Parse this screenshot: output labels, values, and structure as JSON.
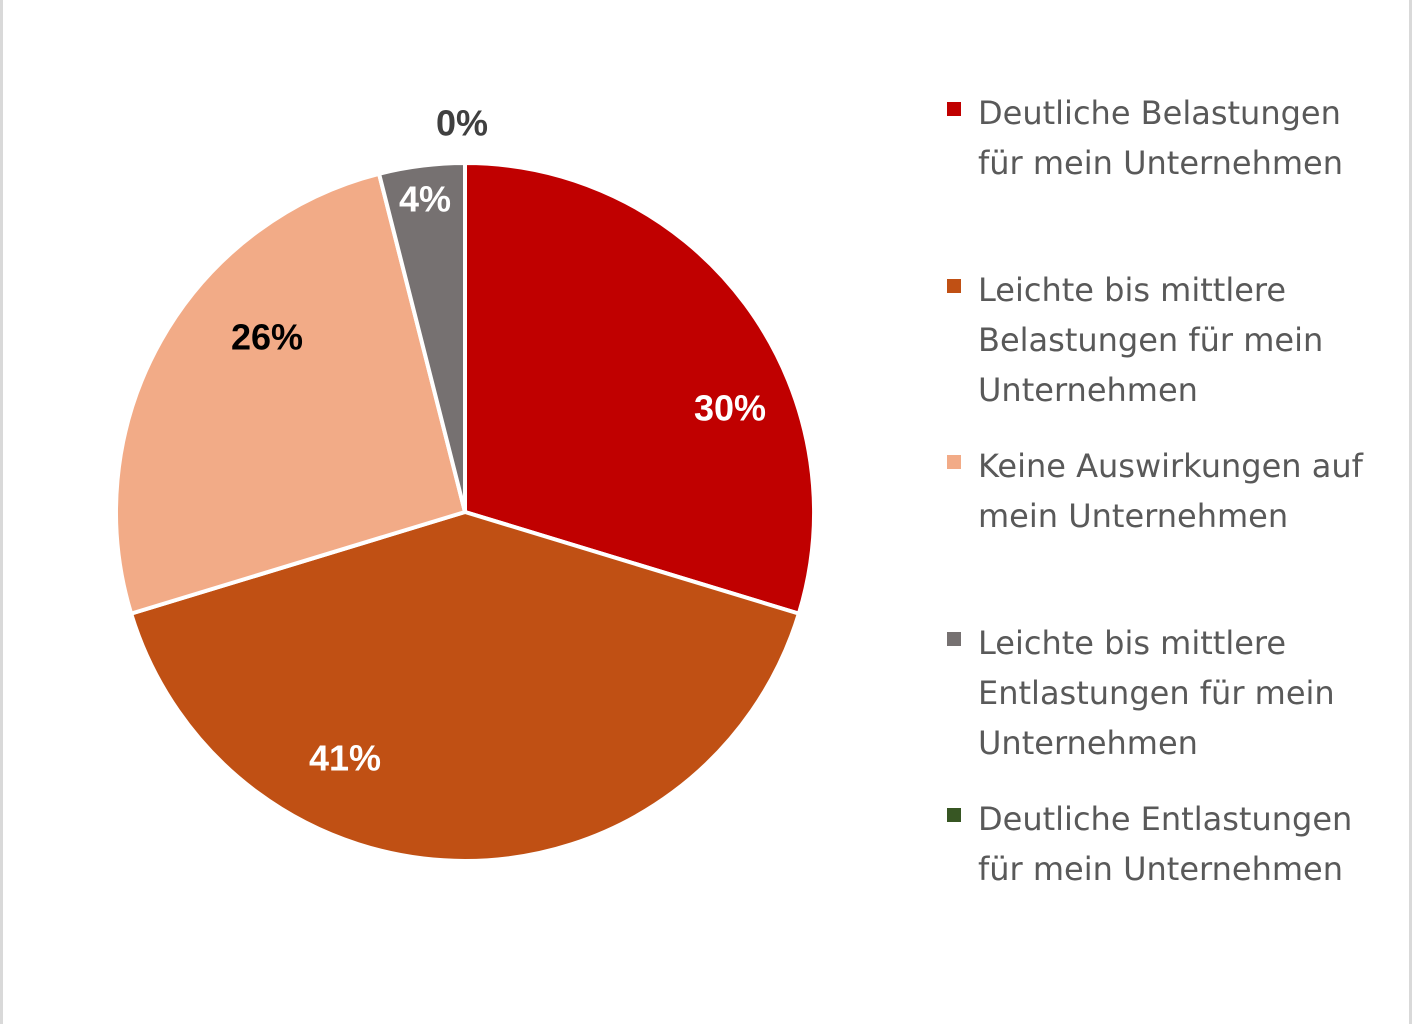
{
  "chart_data": {
    "type": "pie",
    "title": "",
    "start_angle_deg": 0,
    "direction": "clockwise",
    "legend_position": "right",
    "slices": [
      {
        "label": "Deutliche Belastungen für mein Unternehmen",
        "value": 30,
        "value_label": "30%",
        "color": "#C00000",
        "label_color": "#ffffff"
      },
      {
        "label": "Leichte bis mittlere Belastungen für mein Unternehmen",
        "value": 41,
        "value_label": "41%",
        "color": "#C05014",
        "label_color": "#ffffff"
      },
      {
        "label": "Keine Auswirkungen auf mein Unternehmen",
        "value": 26,
        "value_label": "26%",
        "color": "#F2AB87",
        "label_color": "#000000"
      },
      {
        "label": "Leichte bis mittlere Entlastungen für mein Unternehmen",
        "value": 4,
        "value_label": "4%",
        "color": "#767171",
        "label_color": "#ffffff"
      },
      {
        "label": "Deutliche Entlastungen für mein Unternehmen",
        "value": 0,
        "value_label": "0%",
        "color": "#375623",
        "label_color": "#404040"
      }
    ]
  }
}
